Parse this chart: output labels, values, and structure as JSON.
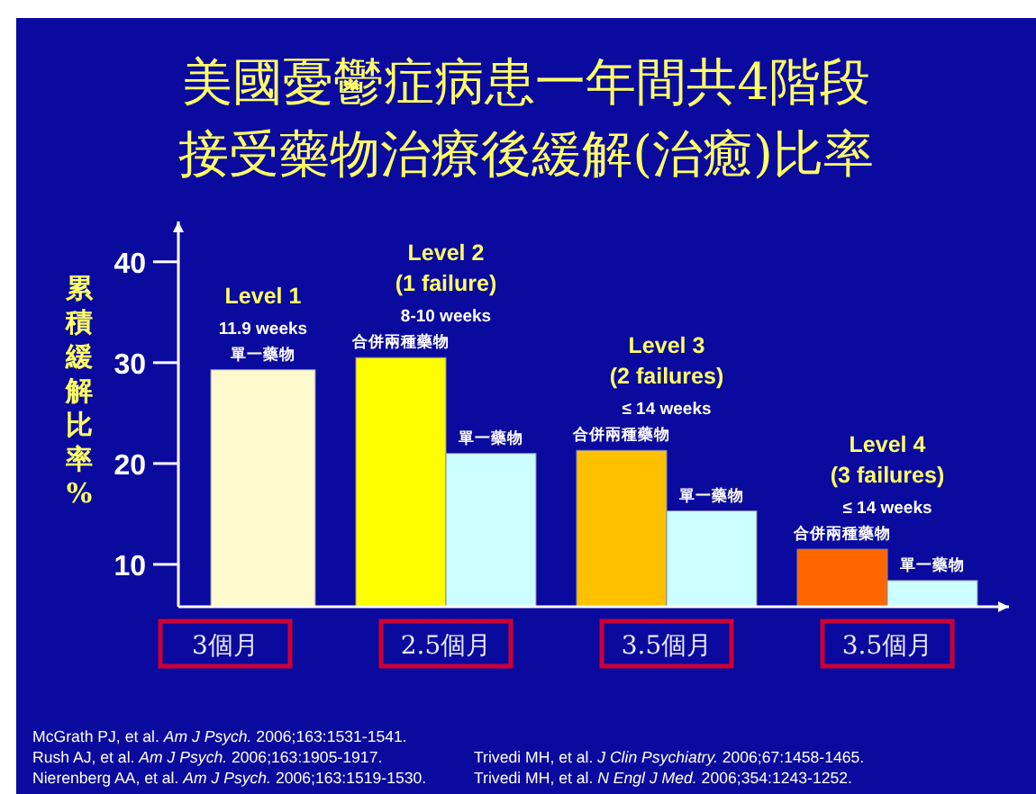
{
  "chart_data": {
    "type": "bar",
    "title": "美國憂鬱症病患一年間共4階段",
    "subtitle": "接受藥物治療後緩解(治癒)比率",
    "ylabel": "累積緩解比率%",
    "categories": [
      "3個月",
      "2.5個月",
      "3.5個月",
      "3.5個月"
    ],
    "series": [
      {
        "name": "合併兩種藥物",
        "values": [
          null,
          30.5,
          21.3,
          11.5
        ],
        "colors": [
          null,
          "#ffff00",
          "#ffc000",
          "#ff6600"
        ]
      },
      {
        "name": "單一藥物",
        "values": [
          29.3,
          21.0,
          15.3,
          8.4
        ],
        "colors": [
          "#fffacd",
          "#ccffff",
          "#ccffff",
          "#ccffff"
        ]
      }
    ],
    "ylim": [
      5.8,
      44
    ],
    "yticks": [
      10,
      20,
      30,
      40
    ],
    "annotations": [
      "Level 1\n11.9 weeks",
      "Level 2\n(1 failure)\n8-10 weeks",
      "Level 3\n(2 failures)\n≤ 14 weeks",
      "Level 4\n(3 failures)\n≤ 14 weeks",
      "McGrath PJ, et al. *Am J Psych.* 2006;163:1531-1541.",
      "Rush AJ, et al. *Am J Psych.* 2006;163:1905-1917.",
      "Nierenberg AA, et al. *Am J Psych.* 2006;163:1519-1530.",
      "Trivedi MH, et al. *J Clin Psychiatry.* 2006;67:1458-1465.",
      "Trivedi MH, et al. *N Engl J Med.* 2006;354:1243-1252."
    ]
  }
}
